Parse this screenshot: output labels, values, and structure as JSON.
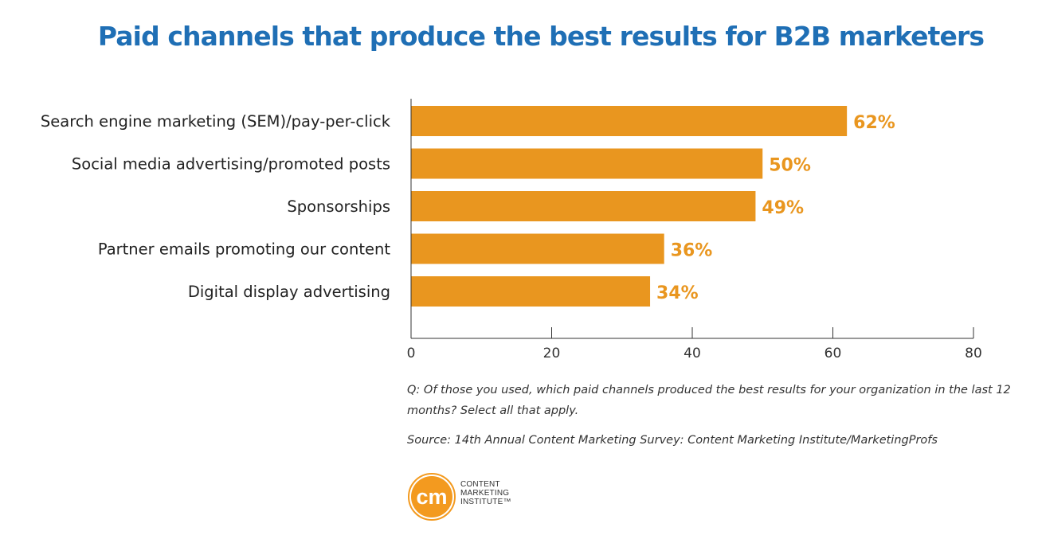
{
  "chart_data": {
    "type": "bar",
    "orientation": "horizontal",
    "title": "Paid channels that produce the best results for B2B marketers",
    "categories": [
      "Search engine marketing (SEM)/pay-per-click",
      "Social media advertising/promoted posts",
      "Sponsorships",
      "Partner emails promoting our content",
      "Digital display advertising"
    ],
    "values": [
      62,
      50,
      49,
      36,
      34
    ],
    "data_labels": [
      "62%",
      "50%",
      "49%",
      "36%",
      "34%"
    ],
    "xlim": [
      0,
      80
    ],
    "xticks": [
      0,
      20,
      40,
      60,
      80
    ],
    "grid": false,
    "bar_color": "#e9961f",
    "label_color": "#e9961f",
    "title_color": "#1f6fb5"
  },
  "notes": {
    "question": "Q: Of those you used, which paid channels produced the best results for your organization in the last 12 months? Select all that apply.",
    "source": "Source: 14th Annual Content Marketing Survey: Content Marketing Institute/MarketingProfs"
  },
  "logo": {
    "initials": "cm",
    "line1": "CONTENT",
    "line2": "MARKETING",
    "line3": "INSTITUTE™",
    "color": "#f39a1f"
  }
}
